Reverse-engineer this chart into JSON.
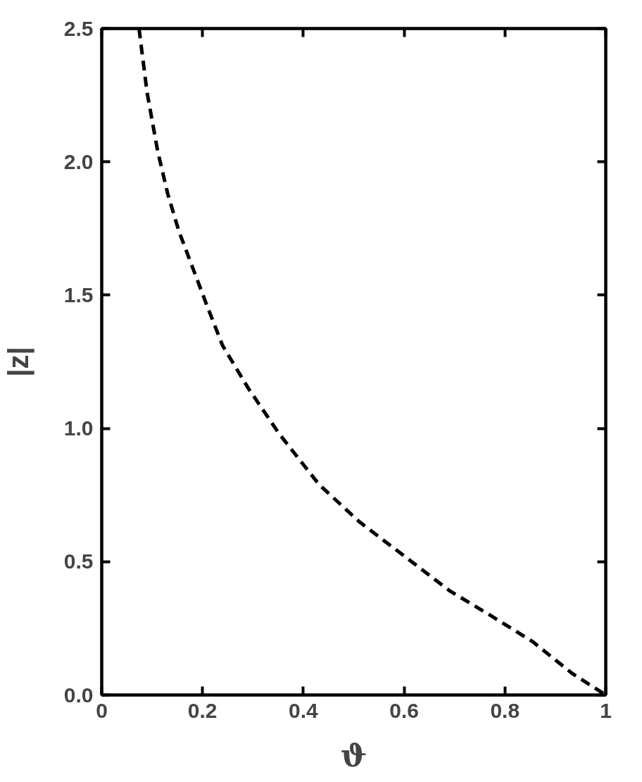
{
  "chart_data": {
    "type": "line",
    "xlabel": "ϑ",
    "ylabel": "|z|",
    "x": [
      0.074,
      0.09,
      0.111,
      0.131,
      0.153,
      0.179,
      0.21,
      0.24,
      0.291,
      0.352,
      0.431,
      0.511,
      0.601,
      0.691,
      0.77,
      0.855,
      0.934,
      1.0
    ],
    "series": [
      {
        "color": "#000000",
        "values": [
          2.5,
          2.26,
          2.04,
          1.88,
          1.74,
          1.61,
          1.455,
          1.31,
          1.15,
          0.98,
          0.79,
          0.65,
          0.52,
          0.39,
          0.3,
          0.2,
          0.08,
          0.0
        ]
      }
    ],
    "xlim": [
      0,
      1
    ],
    "ylim": [
      0,
      2.5
    ],
    "xticks": [
      0,
      0.2,
      0.4,
      0.6,
      0.8,
      1
    ],
    "yticks": [
      {
        "value": 0,
        "label": "0.0"
      },
      {
        "value": 0.5,
        "label": "0.5"
      },
      {
        "value": 1,
        "label": "1.0"
      },
      {
        "value": 1.5,
        "label": "1.5"
      },
      {
        "value": 2,
        "label": "2.0"
      },
      {
        "value": 2.5,
        "label": "2.5"
      }
    ],
    "line_style": "dashed",
    "marker": "none",
    "grid": false
  }
}
